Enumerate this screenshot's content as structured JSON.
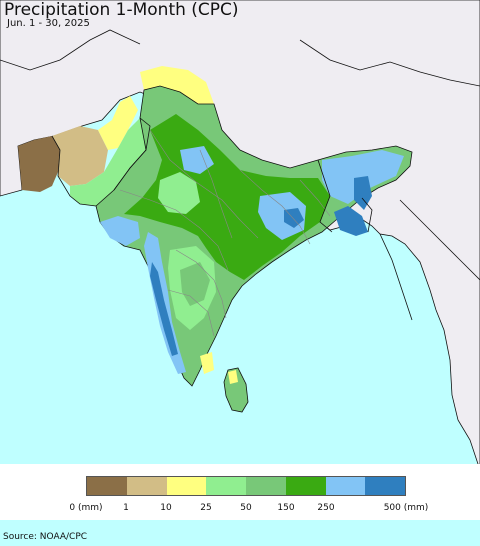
{
  "title": "Precipitation 1-Month (CPC)",
  "subtitle": "Jun. 1 - 30, 2025",
  "source": "Source: NOAA/CPC",
  "colors": {
    "ocean": "#bfffff",
    "land_outside": "#efedf2",
    "border": "#111111",
    "state_border": "#888888"
  },
  "legend": {
    "colors": [
      "#8b6f47",
      "#d2bd86",
      "#ffff80",
      "#90ee90",
      "#78c878",
      "#3aaa12",
      "#82c4f5",
      "#2f7fbf"
    ],
    "labels": [
      "0 (mm)",
      "1",
      "10",
      "25",
      "50",
      "150",
      "250",
      "500 (mm)"
    ]
  }
}
